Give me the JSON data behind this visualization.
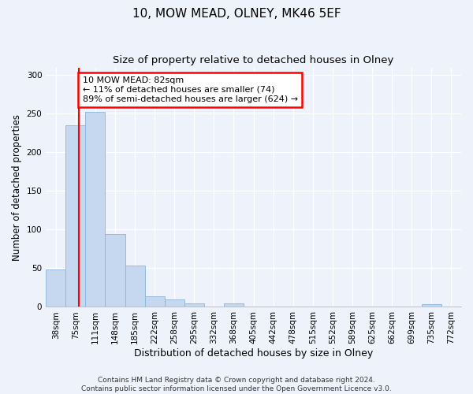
{
  "title1": "10, MOW MEAD, OLNEY, MK46 5EF",
  "title2": "Size of property relative to detached houses in Olney",
  "xlabel": "Distribution of detached houses by size in Olney",
  "ylabel": "Number of detached properties",
  "bar_labels": [
    "38sqm",
    "75sqm",
    "111sqm",
    "148sqm",
    "185sqm",
    "222sqm",
    "258sqm",
    "295sqm",
    "332sqm",
    "368sqm",
    "405sqm",
    "442sqm",
    "478sqm",
    "515sqm",
    "552sqm",
    "589sqm",
    "625sqm",
    "662sqm",
    "699sqm",
    "735sqm",
    "772sqm"
  ],
  "bar_values": [
    48,
    235,
    252,
    94,
    54,
    14,
    10,
    5,
    0,
    5,
    0,
    0,
    0,
    0,
    0,
    0,
    0,
    0,
    0,
    4,
    0
  ],
  "bar_color": "#c5d8f0",
  "bar_edge_color": "#8ab4d8",
  "property_line_x": 1.18,
  "annotation_text": "10 MOW MEAD: 82sqm\n← 11% of detached houses are smaller (74)\n89% of semi-detached houses are larger (624) →",
  "annotation_box_color": "white",
  "annotation_box_edge": "red",
  "vline_color": "red",
  "ylim": [
    0,
    310
  ],
  "yticks": [
    0,
    50,
    100,
    150,
    200,
    250,
    300
  ],
  "background_color": "#eef2fb",
  "axes_background": "#eef2fb",
  "footer": "Contains HM Land Registry data © Crown copyright and database right 2024.\nContains public sector information licensed under the Open Government Licence v3.0.",
  "title1_fontsize": 11,
  "title2_fontsize": 9.5,
  "xlabel_fontsize": 9,
  "ylabel_fontsize": 8.5,
  "footer_fontsize": 6.5,
  "tick_fontsize": 7.5,
  "annot_fontsize": 8
}
